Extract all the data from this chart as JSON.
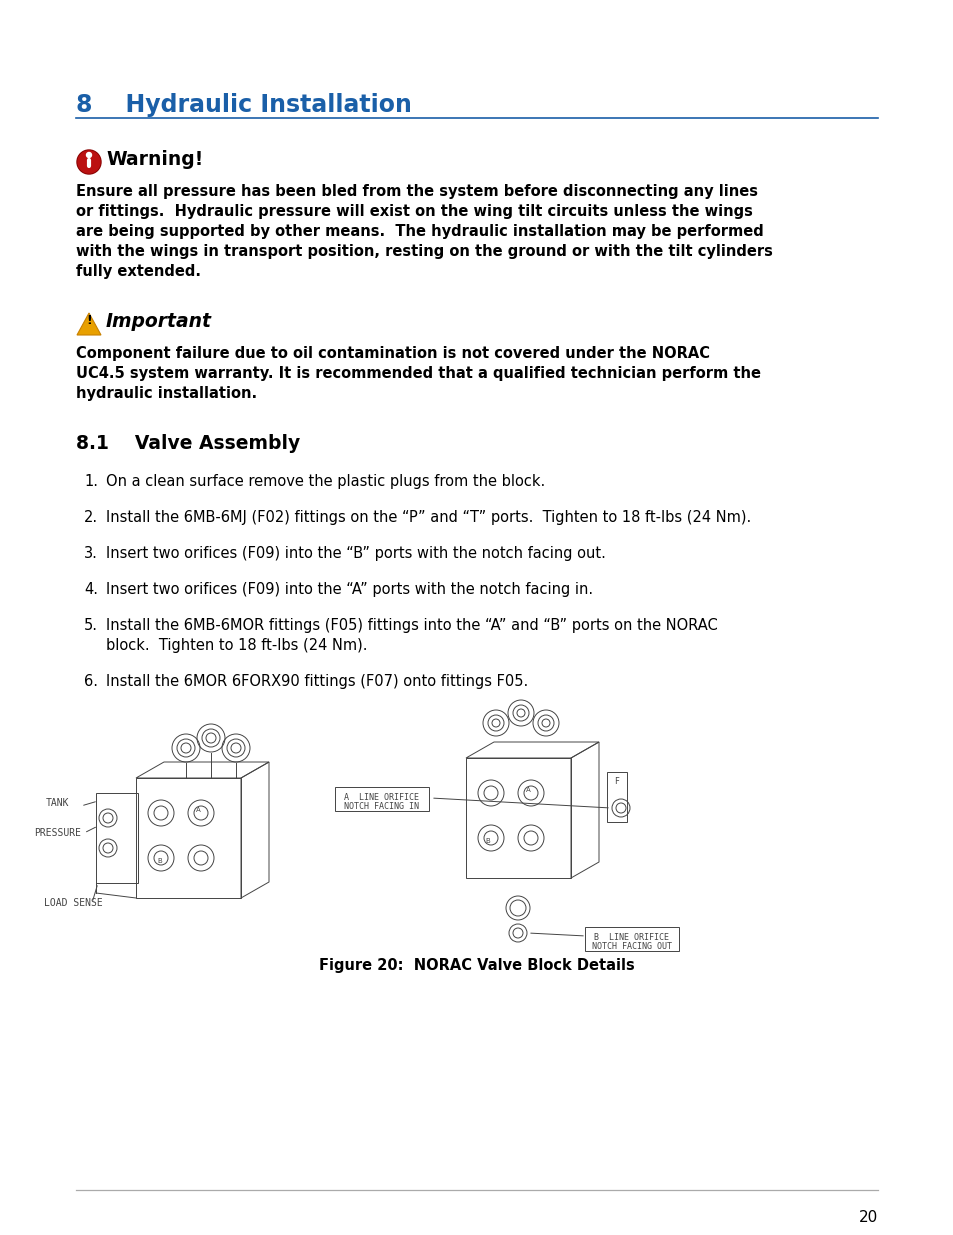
{
  "page_bg": "#ffffff",
  "heading_color": "#1a5fa8",
  "heading_text": "8    Hydraulic Installation",
  "heading_line_color": "#1a5fa8",
  "warning_title": "Warning!",
  "warning_icon_color": "#bb1111",
  "warning_text_lines": [
    "Ensure all pressure has been bled from the system before disconnecting any lines",
    "or fittings.  Hydraulic pressure will exist on the wing tilt circuits unless the wings",
    "are being supported by other means.  The hydraulic installation may be performed",
    "with the wings in transport position, resting on the ground or with the tilt cylinders",
    "fully extended."
  ],
  "important_title": "Important",
  "important_icon_color": "#e8a000",
  "important_text_lines": [
    "Component failure due to oil contamination is not covered under the NORAC",
    "UC4.5 system warranty. It is recommended that a qualified technician perform the",
    "hydraulic installation."
  ],
  "section_title": "8.1    Valve Assembly",
  "steps": [
    [
      "On a clean surface remove the plastic plugs from the block."
    ],
    [
      "Install the 6MB-6MJ (F02) fittings on the “P” and “T” ports.  Tighten to 18 ft-lbs (24 Nm)."
    ],
    [
      "Insert two orifices (F09) into the “B” ports with the notch facing out."
    ],
    [
      "Insert two orifices (F09) into the “A” ports with the notch facing in."
    ],
    [
      "Install the 6MB-6MOR fittings (F05) fittings into the “A” and “B” ports on the NORAC",
      "block.  Tighten to 18 ft-lbs (24 Nm)."
    ],
    [
      "Install the 6MOR 6FORX90 fittings (F07) onto fittings F05."
    ]
  ],
  "figure_caption": "Figure 20:  NORAC Valve Block Details",
  "page_number": "20",
  "ml": 76,
  "mr": 878,
  "text_color": "#000000",
  "sketch_color": "#444444"
}
